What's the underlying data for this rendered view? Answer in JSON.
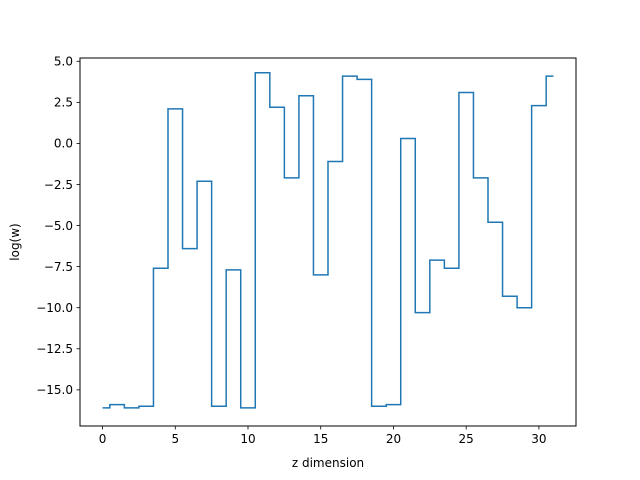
{
  "chart_data": {
    "type": "line",
    "drawstyle": "steps-mid",
    "title": "",
    "xlabel": "z dimension",
    "ylabel": "log(w)",
    "xlim": [
      -1.55,
      32.55
    ],
    "ylim": [
      -17.2,
      5.2
    ],
    "xticks": [
      0,
      5,
      10,
      15,
      20,
      25,
      30
    ],
    "xtick_labels": [
      "0",
      "5",
      "10",
      "15",
      "20",
      "25",
      "30"
    ],
    "yticks": [
      5.0,
      2.5,
      0.0,
      -2.5,
      -5.0,
      -7.5,
      -10.0,
      -12.5,
      -15.0
    ],
    "ytick_labels": [
      "5.0",
      "2.5",
      "0.0",
      "−2.5",
      "−5.0",
      "−7.5",
      "−10.0",
      "−12.5",
      "−15.0"
    ],
    "grid": false,
    "color": "#1f77b4",
    "series": [
      {
        "x": [
          0,
          1,
          2,
          3,
          4,
          5,
          6,
          7,
          8,
          9,
          10,
          11,
          12,
          13,
          14,
          15,
          16,
          17,
          18,
          19,
          20,
          21,
          22,
          23,
          24,
          25,
          26,
          27,
          28,
          29,
          30,
          31
        ],
        "values": [
          -16.1,
          -15.9,
          -16.1,
          -16.0,
          -7.6,
          2.1,
          -6.4,
          -2.3,
          -16.0,
          -7.7,
          -16.1,
          4.3,
          2.2,
          -2.1,
          2.9,
          -8.0,
          -1.1,
          4.1,
          3.9,
          -16.0,
          -15.9,
          0.3,
          -10.3,
          -7.1,
          -7.6,
          3.1,
          -2.1,
          -4.8,
          -9.3,
          -10.0,
          2.3,
          4.1
        ]
      }
    ]
  }
}
